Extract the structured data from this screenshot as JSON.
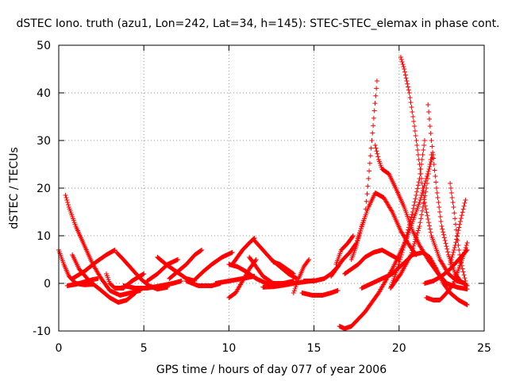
{
  "chart_data": {
    "type": "scatter",
    "title": "dSTEC Iono. truth (azu1, Lon=242, Lat=34, h=145): STEC-STEC_elemax in phase cont.",
    "xlabel": "GPS time / hours of day 077 of year 2006",
    "ylabel": "dSTEC  / TECUs",
    "xlim": [
      0,
      25
    ],
    "ylim": [
      -10,
      50
    ],
    "xticks": [
      0,
      5,
      10,
      15,
      20,
      25
    ],
    "yticks": [
      -10,
      0,
      10,
      20,
      30,
      40,
      50
    ],
    "grid": true,
    "marker": "+",
    "color": "#ff0000",
    "series": [
      {
        "x": [
          0.0,
          0.3,
          0.6,
          1.0,
          1.5,
          2.0
        ],
        "y": [
          7,
          4,
          1.5,
          0,
          -0.3,
          -0.2
        ]
      },
      {
        "x": [
          0.4,
          0.6,
          1.0,
          1.5,
          2.0,
          2.5,
          3.0,
          3.6,
          4.2,
          4.8
        ],
        "y": [
          18.5,
          16,
          12,
          8,
          4,
          1,
          -1.5,
          -2.5,
          -2,
          -1.5
        ]
      },
      {
        "x": [
          0.5,
          1.0,
          1.5,
          2.0,
          2.3
        ],
        "y": [
          -0.5,
          -0.2,
          0.3,
          0.8,
          1
        ]
      },
      {
        "x": [
          0.8,
          1.2,
          1.8,
          2.5,
          3.0,
          3.5,
          4.0,
          4.5
        ],
        "y": [
          6,
          3,
          0.5,
          -1.5,
          -3,
          -4,
          -3.5,
          -2
        ]
      },
      {
        "x": [
          0.8,
          1.5,
          2.2,
          2.8,
          3.3
        ],
        "y": [
          1,
          2.5,
          4.5,
          6,
          7
        ]
      },
      {
        "x": [
          2.8,
          3.0,
          3.3,
          3.8,
          4.3,
          5.0
        ],
        "y": [
          2,
          0,
          -1,
          -1,
          0.5,
          2
        ]
      },
      {
        "x": [
          3.4,
          3.8,
          4.3,
          4.8,
          5.3,
          5.8,
          6.4
        ],
        "y": [
          6.5,
          5,
          3,
          1,
          -0.5,
          -1.2,
          -0.8
        ]
      },
      {
        "x": [
          3.8,
          4.5,
          5.2,
          6.0,
          6.7,
          7.2
        ],
        "y": [
          -0.5,
          -1,
          -1,
          -0.5,
          0,
          0.5
        ]
      },
      {
        "x": [
          5.2,
          5.8,
          6.4,
          7.0
        ],
        "y": [
          0.5,
          2,
          4,
          5
        ]
      },
      {
        "x": [
          5.8,
          6.3,
          6.9,
          7.5,
          8.0
        ],
        "y": [
          5.5,
          4,
          2.5,
          1,
          0.5
        ]
      },
      {
        "x": [
          6.5,
          7.0,
          7.5,
          8.0,
          8.4
        ],
        "y": [
          1,
          2.5,
          4,
          6,
          7
        ]
      },
      {
        "x": [
          7.5,
          8.2,
          9.0,
          9.5
        ],
        "y": [
          0.5,
          -0.5,
          -0.5,
          0
        ]
      },
      {
        "x": [
          8.0,
          8.5,
          9.0,
          9.6,
          10.2
        ],
        "y": [
          0.8,
          2.5,
          4,
          5.5,
          6.5
        ]
      },
      {
        "x": [
          9.2,
          10.0,
          10.8,
          11.5
        ],
        "y": [
          0,
          0.5,
          1,
          1.5
        ]
      },
      {
        "x": [
          10.0,
          10.5,
          11.0,
          11.6,
          12.2,
          12.8
        ],
        "y": [
          4,
          3.5,
          2.5,
          1,
          0,
          -0.5
        ]
      },
      {
        "x": [
          10.0,
          10.4,
          10.8,
          11.2,
          11.6
        ],
        "y": [
          -3,
          -2,
          0.5,
          3,
          5
        ]
      },
      {
        "x": [
          11.2,
          11.6,
          12.0,
          12.6,
          13.2,
          13.8
        ],
        "y": [
          5.5,
          3.5,
          1.5,
          0,
          0,
          0.5
        ]
      },
      {
        "x": [
          10.2,
          10.5,
          10.8,
          11.2,
          11.5
        ],
        "y": [
          4,
          5.5,
          7,
          8.5,
          9.5
        ]
      },
      {
        "x": [
          11.5,
          12.0,
          12.5,
          13.0,
          13.5,
          14.0
        ],
        "y": [
          9,
          7,
          5,
          3.5,
          2,
          1
        ]
      },
      {
        "x": [
          12.0,
          12.6,
          13.2,
          13.8,
          14.4,
          15.0
        ],
        "y": [
          -0.8,
          -0.7,
          -0.4,
          0,
          0.3,
          0.6
        ]
      },
      {
        "x": [
          12.6,
          13.0,
          13.4,
          13.8
        ],
        "y": [
          4.5,
          4,
          3,
          2
        ]
      },
      {
        "x": [
          13.8,
          14.1,
          14.4,
          14.7
        ],
        "y": [
          -2,
          1,
          3.5,
          5
        ]
      },
      {
        "x": [
          14.3,
          14.9,
          15.5,
          16.0,
          16.4
        ],
        "y": [
          -2,
          -2.5,
          -2.5,
          -2,
          -1.5
        ]
      },
      {
        "x": [
          14.4,
          15.0,
          15.6,
          16.0,
          16.4
        ],
        "y": [
          0.5,
          0.5,
          1,
          2,
          3.5
        ]
      },
      {
        "x": [
          16.0,
          16.3,
          16.7,
          17.1,
          17.5,
          18.0,
          18.4,
          18.7
        ],
        "y": [
          1.5,
          3,
          5,
          6.5,
          8.5,
          14,
          30,
          42.5
        ]
      },
      {
        "x": [
          16.3,
          16.6,
          17.0,
          17.3
        ],
        "y": [
          4,
          7,
          8.5,
          10
        ]
      },
      {
        "x": [
          17.2,
          17.5,
          17.8,
          18.2,
          18.6,
          19.1,
          19.6,
          20.1,
          20.6,
          21.0
        ],
        "y": [
          5,
          8,
          12,
          16,
          19,
          18,
          15,
          11,
          8,
          6
        ]
      },
      {
        "x": [
          16.5,
          16.8,
          17.2,
          17.6,
          18.0,
          18.4,
          18.8,
          19.2,
          19.6,
          20.0,
          20.4,
          20.8,
          21.2,
          21.6,
          22.0
        ],
        "y": [
          -9,
          -9.5,
          -9,
          -7.5,
          -6,
          -4,
          -2,
          0.5,
          3,
          6,
          9,
          13,
          17,
          22,
          27
        ]
      },
      {
        "x": [
          16.8,
          17.2,
          17.6,
          18.0,
          18.5,
          19.0,
          19.5,
          20.0
        ],
        "y": [
          2,
          3,
          4,
          5.5,
          6.5,
          7,
          6,
          5
        ]
      },
      {
        "x": [
          18.6,
          18.8,
          19.0,
          19.4,
          19.8,
          20.3,
          20.8,
          21.2,
          21.7,
          22.3,
          22.8,
          23.4,
          24.0
        ],
        "y": [
          29,
          26,
          24,
          23,
          20,
          16,
          11,
          8,
          5,
          2,
          0,
          -0.8,
          -1.2
        ]
      },
      {
        "x": [
          17.8,
          18.4,
          19.0,
          19.6,
          20.2,
          20.8,
          21.4,
          21.8,
          22.2,
          22.6,
          23.0,
          23.5,
          24.0
        ],
        "y": [
          -1,
          0,
          1,
          2,
          4,
          6,
          6.5,
          5.5,
          3,
          0,
          -2,
          -3.5,
          -4.5
        ]
      },
      {
        "x": [
          20.1,
          20.3,
          20.6,
          20.9,
          21.2,
          21.5,
          21.9,
          22.4,
          22.9,
          23.4,
          23.9
        ],
        "y": [
          47.5,
          45,
          40,
          33,
          25,
          17,
          10,
          5,
          2,
          0.5,
          0
        ]
      },
      {
        "x": [
          19.5,
          19.9,
          20.3,
          20.8,
          21.2,
          21.5
        ],
        "y": [
          -1,
          3,
          8,
          15,
          22,
          30
        ]
      },
      {
        "x": [
          19.5,
          20.1,
          20.7,
          21.2,
          21.6,
          21.9
        ],
        "y": [
          -1,
          2,
          6,
          12,
          20,
          27
        ]
      },
      {
        "x": [
          21.7,
          21.9,
          22.2,
          22.5,
          22.9,
          23.3,
          23.6,
          24.0
        ],
        "y": [
          37.5,
          30,
          20,
          12,
          6,
          2,
          0.5,
          -0.5
        ]
      },
      {
        "x": [
          21.6,
          22.0,
          22.4,
          22.8,
          23.2,
          23.5,
          23.8,
          24.0
        ],
        "y": [
          -3,
          -3.5,
          -3.5,
          -2,
          0,
          3,
          6,
          8.5
        ]
      },
      {
        "x": [
          23.0,
          23.2,
          23.4,
          23.6,
          23.9
        ],
        "y": [
          21,
          16,
          10,
          5,
          0.5
        ]
      },
      {
        "x": [
          23.0,
          23.3,
          23.6,
          23.9
        ],
        "y": [
          4,
          8,
          13,
          17.5
        ]
      },
      {
        "x": [
          21.5,
          22.0,
          22.5,
          23.0,
          23.5,
          24.0
        ],
        "y": [
          0,
          0.5,
          1.5,
          3,
          5,
          7
        ]
      }
    ]
  }
}
